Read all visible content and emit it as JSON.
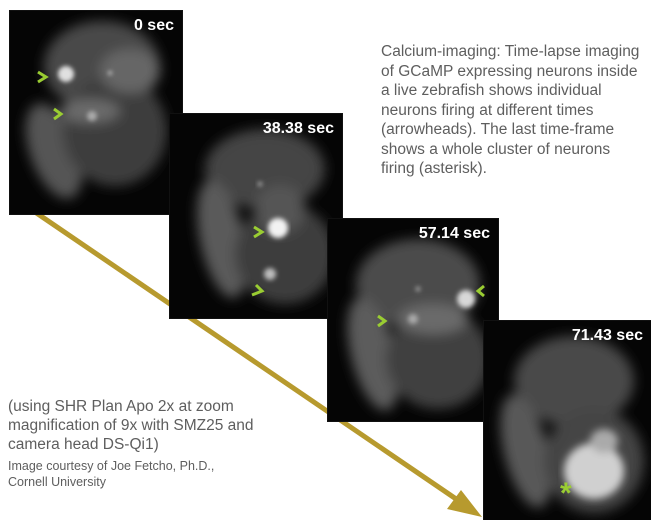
{
  "frames": [
    {
      "time": "0 sec"
    },
    {
      "time": "38.38 sec"
    },
    {
      "time": "57.14 sec"
    },
    {
      "time": "71.43 sec"
    }
  ],
  "caption": "Calcium-imaging: Time-lapse imaging of GCaMP expressing neurons inside a live zebrafish shows individual neurons firing at different times (arrowheads). The last time-frame shows a whole cluster of neurons firing (asterisk).",
  "microscope_note": "(using SHR Plan Apo 2x at zoom magnification of 9x with SMZ25 and camera head DS-Qi1)",
  "credit": {
    "line1": "Image courtesy of  Joe Fetcho, Ph.D.,",
    "line2": "Cornell University"
  },
  "marker_symbol": "*",
  "colors": {
    "arrow": "#b79a2e",
    "marker": "#9acd32",
    "text": "#5e5e5e"
  }
}
